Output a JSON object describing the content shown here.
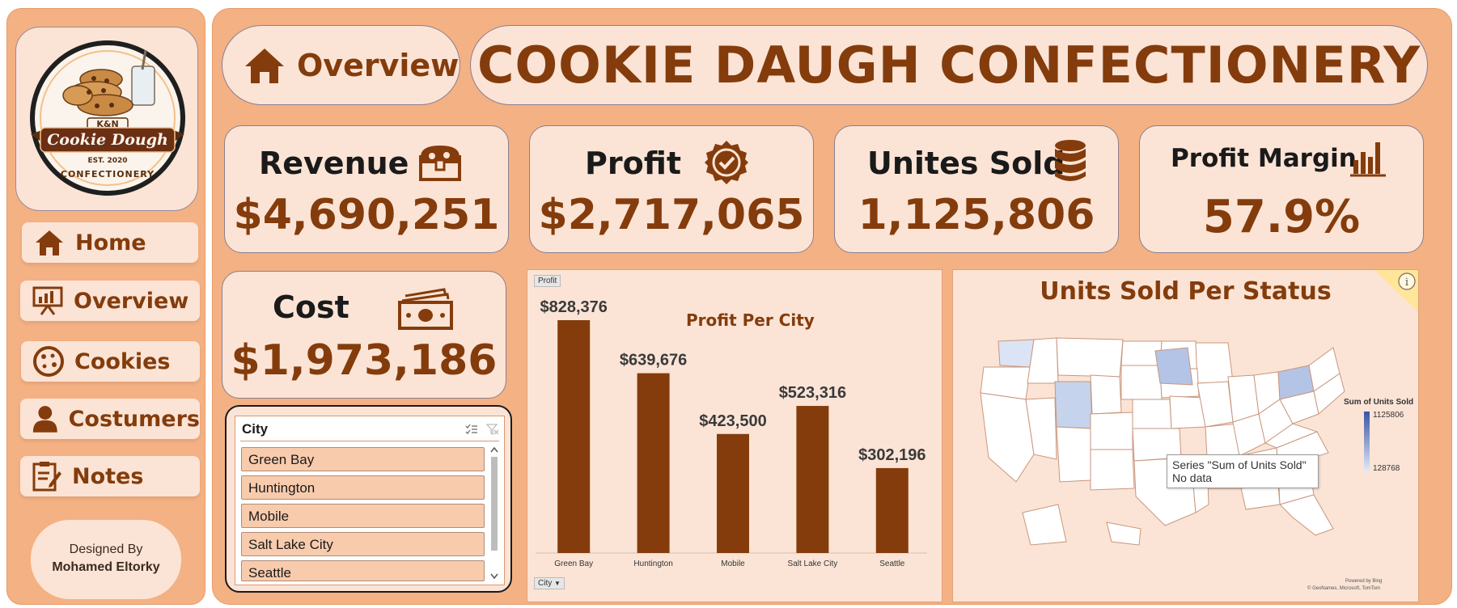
{
  "sidebar": {
    "logo": {
      "line1": "K&N",
      "line2": "Cookie Dough",
      "line3": "EST. 2020",
      "line4": "CONFECTIONERY"
    },
    "nav": [
      {
        "label": "Home",
        "icon": "home-icon"
      },
      {
        "label": "Overview",
        "icon": "presentation-icon"
      },
      {
        "label": "Cookies",
        "icon": "cookie-icon"
      },
      {
        "label": "Costumers",
        "icon": "user-icon"
      },
      {
        "label": "Notes",
        "icon": "notes-icon"
      }
    ],
    "designed_by": "Designed By",
    "designer": "Mohamed Eltorky"
  },
  "header": {
    "page": "Overview",
    "title": "COOKIE DAUGH CONFECTIONERY"
  },
  "kpis": {
    "revenue": {
      "label": "Revenue",
      "value": "$4,690,251",
      "icon": "treasure-chest-icon"
    },
    "profit": {
      "label": "Profit",
      "value": "$2,717,065",
      "icon": "verified-badge-icon"
    },
    "units": {
      "label": "Unites Sold",
      "value": "1,125,806",
      "icon": "database-icon"
    },
    "margin": {
      "label": "Profit Margin",
      "value": "57.9%",
      "icon": "bar-chart-icon"
    },
    "cost": {
      "label": "Cost",
      "value": "$1,973,186",
      "icon": "cash-icon"
    }
  },
  "slicer": {
    "title": "City",
    "items": [
      "Green Bay",
      "Huntington",
      "Mobile",
      "Salt Lake City",
      "Seattle"
    ]
  },
  "chart_data": [
    {
      "type": "bar",
      "title": "Profit Per City",
      "field_button": "Profit",
      "axis_button": "City",
      "categories": [
        "Green Bay",
        "Huntington",
        "Mobile",
        "Salt Lake City",
        "Seattle"
      ],
      "values": [
        828376,
        639676,
        423500,
        523316,
        302196
      ],
      "value_labels": [
        "$828,376",
        "$639,676",
        "$423,500",
        "$523,316",
        "$302,196"
      ],
      "color": "#843c0c",
      "grid": false
    },
    {
      "type": "map",
      "title": "Units Sold Per Status",
      "legend_title": "Sum of Units Sold",
      "legend_max": "1125806",
      "legend_min": "128768",
      "tooltip_line1": "Series \"Sum of Units Sold\"",
      "tooltip_line2": "No data",
      "credit1": "Powered by Bing",
      "credit2": "© GeoNames, Microsoft, TomTom"
    }
  ],
  "colors": {
    "background": "#f4b183",
    "card": "#fbe4d6",
    "accent": "#843c0c",
    "slicer_item": "#f8cbad"
  }
}
